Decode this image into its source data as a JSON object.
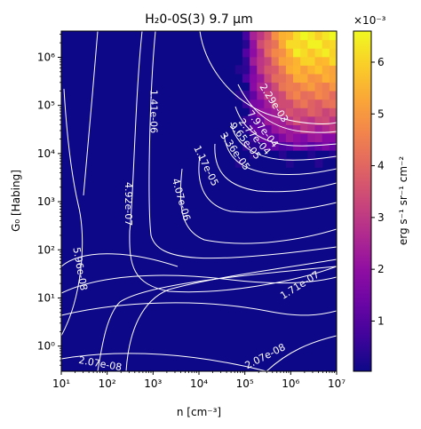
{
  "chart_data": {
    "type": "heatmap",
    "title": "H₂0-0S(3) 9.7 μm",
    "xlabel": "n [cm⁻³]",
    "ylabel": "G₀ [Habing]",
    "x_scale": "log",
    "y_scale": "log",
    "xlim": [
      10,
      10000000
    ],
    "ylim": [
      0.3,
      3500000
    ],
    "x_ticks": [
      {
        "value": 10,
        "label": "10¹"
      },
      {
        "value": 100,
        "label": "10²"
      },
      {
        "value": 1000,
        "label": "10³"
      },
      {
        "value": 10000,
        "label": "10⁴"
      },
      {
        "value": 100000,
        "label": "10⁵"
      },
      {
        "value": 1000000,
        "label": "10⁶"
      },
      {
        "value": 10000000,
        "label": "10⁷"
      }
    ],
    "y_ticks": [
      {
        "value": 1,
        "label": "10⁰"
      },
      {
        "value": 10,
        "label": "10¹"
      },
      {
        "value": 100,
        "label": "10²"
      },
      {
        "value": 1000,
        "label": "10³"
      },
      {
        "value": 10000,
        "label": "10⁴"
      },
      {
        "value": 100000,
        "label": "10⁵"
      },
      {
        "value": 1000000,
        "label": "10⁶"
      }
    ],
    "colormap": "plasma",
    "colorbar": {
      "label": "erg s⁻¹ sr⁻¹ cm⁻²",
      "multiplier": "×10⁻³",
      "range": [
        3e-05,
        0.0066
      ],
      "ticks": [
        {
          "value": 0.001,
          "label": "1"
        },
        {
          "value": 0.002,
          "label": "2"
        },
        {
          "value": 0.003,
          "label": "3"
        },
        {
          "value": 0.004,
          "label": "4"
        },
        {
          "value": 0.005,
          "label": "5"
        },
        {
          "value": 0.006,
          "label": "6"
        }
      ]
    },
    "contour_labels": [
      {
        "text": "2.07e-08",
        "x": 70,
        "y": 0.42,
        "angle": 10
      },
      {
        "text": "2.07e-08",
        "x": 280000,
        "y": 0.6,
        "angle": -27
      },
      {
        "text": "5.96e-08",
        "x": 25,
        "y": 40,
        "angle": 80
      },
      {
        "text": "1.71e-07",
        "x": 1600000,
        "y": 18,
        "angle": -32
      },
      {
        "text": "4.92e-07",
        "x": 280,
        "y": 900,
        "angle": 90
      },
      {
        "text": "4.07e-06",
        "x": 4000,
        "y": 1100,
        "angle": 74
      },
      {
        "text": "1.17e-05",
        "x": 14000,
        "y": 5500,
        "angle": 64
      },
      {
        "text": "3.36e-05",
        "x": 60000,
        "y": 11000,
        "angle": 55
      },
      {
        "text": "9.65e-05",
        "x": 100000,
        "y": 18000,
        "angle": 52
      },
      {
        "text": "2.77e-04",
        "x": 160000,
        "y": 22000,
        "angle": 50
      },
      {
        "text": "7.97e-04",
        "x": 240000,
        "y": 32000,
        "angle": 52
      },
      {
        "text": "1.41e-06",
        "x": 1000,
        "y": 75000,
        "angle": 90
      },
      {
        "text": "2.29e-03",
        "x": 420000,
        "y": 110000,
        "angle": 57
      }
    ]
  }
}
